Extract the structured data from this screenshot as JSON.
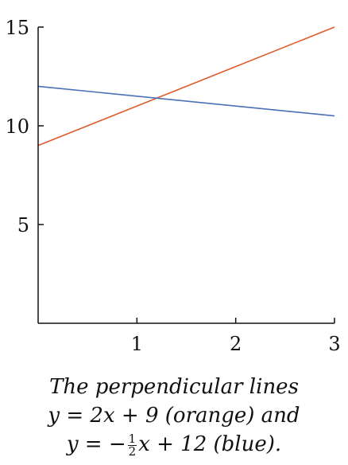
{
  "chart_data": {
    "type": "line",
    "xlim": [
      0,
      3
    ],
    "ylim": [
      0,
      15
    ],
    "x_ticks": [
      1,
      2,
      3
    ],
    "y_ticks": [
      5,
      10,
      15
    ],
    "x_tick_labels": [
      "1",
      "2",
      "3"
    ],
    "y_tick_labels": [
      "5",
      "10",
      "15"
    ],
    "grid": false,
    "series": [
      {
        "color": "#e05a2b",
        "x": [
          0,
          3
        ],
        "y": [
          9,
          15
        ]
      },
      {
        "color": "#4a6fb5",
        "x": [
          0,
          3
        ],
        "y": [
          12,
          10.5
        ]
      }
    ]
  },
  "caption": {
    "line1": "The perpendicular lines",
    "line2_eq": "y = 2x + 9",
    "line2_note": "(orange) and",
    "line3_y": "y = −",
    "line3_frac_num": "1",
    "line3_frac_den": "2",
    "line3_rest": "x + 12",
    "line3_note": "(blue)."
  }
}
